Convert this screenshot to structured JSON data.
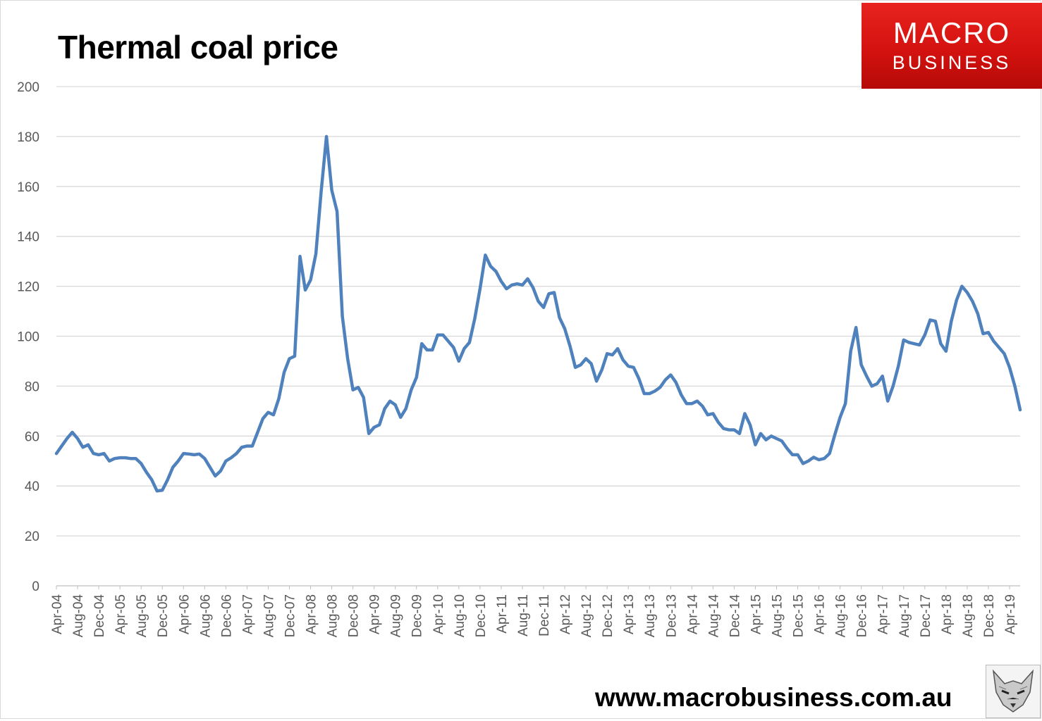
{
  "header": {
    "title": "Thermal coal price"
  },
  "logo": {
    "line1": "MACRO",
    "line2": "BUSINESS"
  },
  "footer": {
    "url": "www.macrobusiness.com.au"
  },
  "badge": {
    "icon": "fox-icon"
  },
  "colors": {
    "line": "#4f81bd",
    "grid": "#d9d9d9",
    "axis_text": "#595959",
    "logo_red": "#e0201c"
  },
  "chart_data": {
    "type": "line",
    "title": "Thermal coal price",
    "xlabel": "",
    "ylabel": "",
    "ylim": [
      0,
      200
    ],
    "yticks": [
      0,
      20,
      40,
      60,
      80,
      100,
      120,
      140,
      160,
      180,
      200
    ],
    "grid": true,
    "x_tick_labels": [
      "Apr-04",
      "Aug-04",
      "Dec-04",
      "Apr-05",
      "Aug-05",
      "Dec-05",
      "Apr-06",
      "Aug-06",
      "Dec-06",
      "Apr-07",
      "Aug-07",
      "Dec-07",
      "Apr-08",
      "Aug-08",
      "Dec-08",
      "Apr-09",
      "Aug-09",
      "Dec-09",
      "Apr-10",
      "Aug-10",
      "Dec-10",
      "Apr-11",
      "Aug-11",
      "Dec-11",
      "Apr-12",
      "Aug-12",
      "Dec-12",
      "Apr-13",
      "Aug-13",
      "Dec-13",
      "Apr-14",
      "Aug-14",
      "Dec-14",
      "Apr-15",
      "Aug-15",
      "Dec-15",
      "Apr-16",
      "Aug-16",
      "Dec-16",
      "Apr-17",
      "Aug-17",
      "Dec-17",
      "Apr-18",
      "Aug-18",
      "Dec-18",
      "Apr-19"
    ],
    "series": [
      {
        "start": "Apr-04",
        "frequency": "monthly",
        "values": [
          53,
          56,
          59,
          61.5,
          59,
          55.5,
          56.5,
          53,
          52.5,
          53,
          50,
          51,
          51.3,
          51.3,
          51,
          51,
          49,
          45.5,
          42.5,
          38,
          38.3,
          42.5,
          47.5,
          50,
          53,
          52.8,
          52.5,
          52.8,
          51,
          47.5,
          44,
          46,
          50,
          51.3,
          53,
          55.5,
          56,
          56,
          61.5,
          67,
          69.5,
          68.5,
          75,
          85.5,
          91,
          92,
          132,
          118.5,
          122.5,
          133,
          158,
          180,
          158.5,
          150,
          108,
          91,
          78.5,
          79.5,
          75.5,
          61,
          63.5,
          64.5,
          71,
          74,
          72.5,
          67.5,
          71,
          78.5,
          83.5,
          97,
          94.5,
          94.5,
          100.5,
          100.5,
          98,
          95.5,
          90,
          95,
          97.5,
          107,
          119,
          132.5,
          128,
          126,
          122,
          119,
          120.5,
          121,
          120.5,
          123,
          119.5,
          114,
          111.5,
          117,
          117.5,
          107.5,
          103,
          96,
          87.5,
          88.5,
          91,
          89,
          82,
          86.5,
          93,
          92.5,
          95,
          90.5,
          88,
          87.5,
          83,
          77,
          77,
          78,
          79.5,
          82.5,
          84.5,
          81.5,
          76.5,
          73,
          73,
          74,
          72,
          68.5,
          69,
          65.5,
          63,
          62.5,
          62.5,
          61,
          69,
          64.5,
          56.5,
          61,
          58.5,
          60,
          59,
          58,
          55,
          52.5,
          52.5,
          49,
          50,
          51.5,
          50.5,
          51,
          53,
          60.5,
          67.5,
          73,
          94,
          103.5,
          88.5,
          84,
          80,
          81,
          84,
          74,
          80,
          88,
          98.5,
          97.5,
          97,
          96.5,
          100.5,
          106.5,
          106,
          97,
          94,
          106,
          114.5,
          120,
          117.5,
          114,
          109,
          101,
          101.5,
          98,
          95.5,
          93,
          87.5,
          80,
          70.5
        ]
      }
    ]
  }
}
